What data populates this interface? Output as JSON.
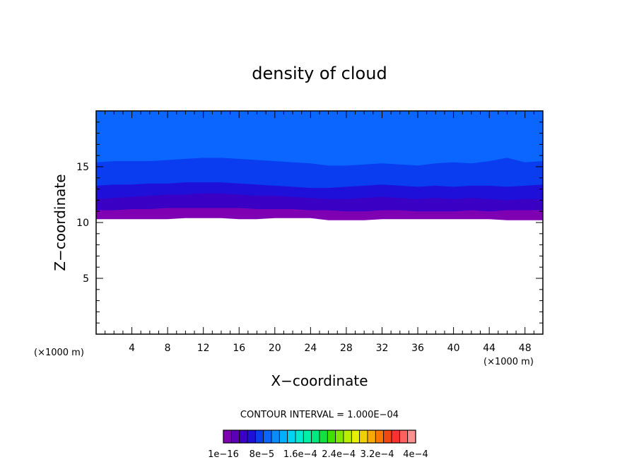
{
  "chart_data": {
    "type": "contour",
    "title": "density of cloud",
    "xlabel": "X−coordinate",
    "ylabel": "Z−coordinate",
    "x_unit_left": "(×1000 m)",
    "x_unit_right": "(×1000 m)",
    "xlim": [
      0,
      50
    ],
    "ylim": [
      0,
      20
    ],
    "x_ticks": [
      4,
      8,
      12,
      16,
      20,
      24,
      28,
      32,
      36,
      40,
      44,
      48
    ],
    "y_ticks": [
      5,
      10,
      15
    ],
    "contour_interval_label": "CONTOUR INTERVAL = 1.000E−04",
    "colorbar_labels": [
      "1e−16",
      "8e−5",
      "1.6e−4",
      "2.4e−4",
      "3.2e−4",
      "4e−4"
    ],
    "colorbar_colors": [
      "#7f00b3",
      "#5c00b8",
      "#3a00c4",
      "#1e10d8",
      "#0a3df0",
      "#0a66ff",
      "#0a8cff",
      "#00b0ff",
      "#00d4f2",
      "#00e8d0",
      "#00f0a8",
      "#00e880",
      "#10e040",
      "#40e000",
      "#80e800",
      "#b8f000",
      "#e8f000",
      "#f0d000",
      "#f8a800",
      "#f87800",
      "#f04810",
      "#ff3030",
      "#ff6060",
      "#ff9090"
    ],
    "x": [
      0,
      2,
      4,
      6,
      8,
      10,
      12,
      14,
      16,
      18,
      20,
      22,
      24,
      26,
      28,
      30,
      32,
      34,
      36,
      38,
      40,
      42,
      44,
      46,
      48,
      50
    ],
    "bands": [
      {
        "color": "#7f00b3",
        "lower": [
          10.3,
          10.3,
          10.3,
          10.3,
          10.3,
          10.4,
          10.4,
          10.4,
          10.3,
          10.3,
          10.4,
          10.4,
          10.4,
          10.2,
          10.2,
          10.2,
          10.3,
          10.3,
          10.3,
          10.3,
          10.3,
          10.3,
          10.3,
          10.2,
          10.2,
          10.2
        ]
      },
      {
        "color": "#3a00c4",
        "lower": [
          11.1,
          11.1,
          11.2,
          11.2,
          11.3,
          11.3,
          11.3,
          11.3,
          11.3,
          11.2,
          11.2,
          11.2,
          11.1,
          11.1,
          11.0,
          11.0,
          11.1,
          11.1,
          11.0,
          11.0,
          11.0,
          11.1,
          11.0,
          11.1,
          11.1,
          11.1
        ]
      },
      {
        "color": "#1e10d8",
        "lower": [
          12.1,
          12.2,
          12.3,
          12.4,
          12.5,
          12.5,
          12.6,
          12.6,
          12.5,
          12.4,
          12.4,
          12.3,
          12.2,
          12.1,
          12.1,
          12.2,
          12.3,
          12.2,
          12.1,
          12.2,
          12.1,
          12.2,
          12.1,
          12.0,
          12.1,
          12.1
        ]
      },
      {
        "color": "#0a3df0",
        "lower": [
          13.3,
          13.4,
          13.4,
          13.5,
          13.5,
          13.6,
          13.6,
          13.6,
          13.5,
          13.4,
          13.3,
          13.2,
          13.1,
          13.1,
          13.2,
          13.3,
          13.4,
          13.3,
          13.2,
          13.3,
          13.2,
          13.3,
          13.3,
          13.2,
          13.3,
          13.4
        ]
      },
      {
        "color": "#0a66ff",
        "lower": [
          15.4,
          15.5,
          15.5,
          15.5,
          15.6,
          15.7,
          15.8,
          15.8,
          15.7,
          15.6,
          15.5,
          15.4,
          15.3,
          15.1,
          15.1,
          15.2,
          15.3,
          15.2,
          15.1,
          15.3,
          15.4,
          15.3,
          15.5,
          15.8,
          15.4,
          15.5
        ]
      },
      {
        "color": "#0a8cff",
        "lower": [
          20,
          20,
          20,
          20,
          20,
          20,
          20,
          20,
          20,
          20,
          20,
          20,
          20,
          20,
          20,
          20,
          20,
          20,
          20,
          20,
          20,
          20,
          20,
          20,
          20,
          20
        ]
      }
    ]
  }
}
